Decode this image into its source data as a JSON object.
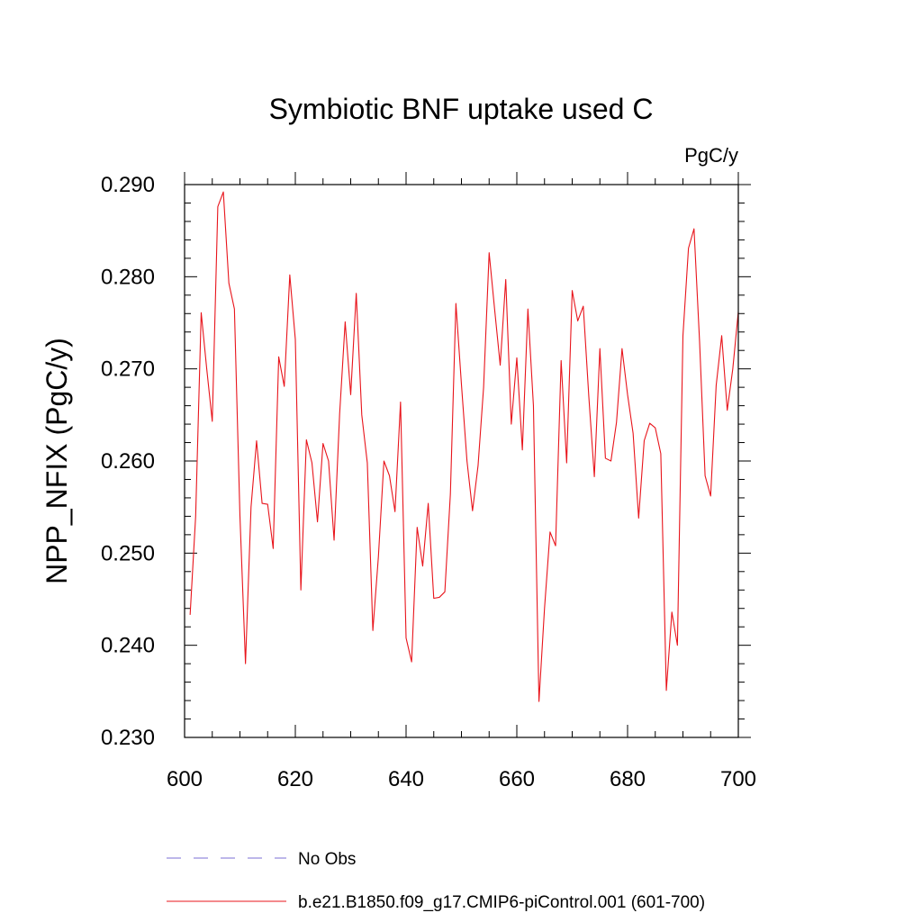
{
  "chart_data": {
    "type": "line",
    "title": "Symbiotic BNF uptake used C",
    "units_label": "PgC/y",
    "xlabel": "",
    "ylabel": "NPP_NFIX  (PgC/y)",
    "xlim": [
      600,
      700
    ],
    "ylim": [
      0.23,
      0.29
    ],
    "x_ticks": [
      600,
      620,
      640,
      660,
      680,
      700
    ],
    "x_tick_labels": [
      "600",
      "620",
      "640",
      "660",
      "680",
      "700"
    ],
    "y_ticks": [
      0.23,
      0.24,
      0.25,
      0.26,
      0.27,
      0.28,
      0.29
    ],
    "y_tick_labels": [
      "0.230",
      "0.240",
      "0.250",
      "0.260",
      "0.270",
      "0.280",
      "0.290"
    ],
    "grid": false,
    "legend": [
      {
        "label": "No Obs",
        "style": "dashed",
        "color": "#7b6fd6"
      },
      {
        "label": "b.e21.B1850.f09_g17.CMIP6-piControl.001 (601-700)",
        "style": "solid",
        "color": "#e8141b"
      }
    ],
    "series": [
      {
        "name": "b.e21.B1850.f09_g17.CMIP6-piControl.001 (601-700)",
        "color": "#e8141b",
        "x": [
          601,
          602,
          603,
          604,
          605,
          606,
          607,
          608,
          609,
          610,
          611,
          612,
          613,
          614,
          615,
          616,
          617,
          618,
          619,
          620,
          621,
          622,
          623,
          624,
          625,
          626,
          627,
          628,
          629,
          630,
          631,
          632,
          633,
          634,
          635,
          636,
          637,
          638,
          639,
          640,
          641,
          642,
          643,
          644,
          645,
          646,
          647,
          648,
          649,
          650,
          651,
          652,
          653,
          654,
          655,
          656,
          657,
          658,
          659,
          660,
          661,
          662,
          663,
          664,
          665,
          666,
          667,
          668,
          669,
          670,
          671,
          672,
          673,
          674,
          675,
          676,
          677,
          678,
          679,
          680,
          681,
          682,
          683,
          684,
          685,
          686,
          687,
          688,
          689,
          690,
          691,
          692,
          693,
          694,
          695,
          696,
          697,
          698,
          699,
          700
        ],
        "values": [
          0.2433,
          0.254,
          0.2761,
          0.27,
          0.2643,
          0.2876,
          0.2892,
          0.2793,
          0.2765,
          0.254,
          0.238,
          0.255,
          0.2622,
          0.2554,
          0.2553,
          0.2505,
          0.2713,
          0.2681,
          0.2802,
          0.2732,
          0.246,
          0.2623,
          0.2598,
          0.2534,
          0.2619,
          0.26,
          0.2514,
          0.2651,
          0.2751,
          0.2672,
          0.2782,
          0.265,
          0.2598,
          0.2416,
          0.2496,
          0.26,
          0.2584,
          0.2545,
          0.2664,
          0.2408,
          0.2382,
          0.2528,
          0.2486,
          0.2554,
          0.2451,
          0.2452,
          0.2458,
          0.2564,
          0.2771,
          0.2683,
          0.26,
          0.2546,
          0.2595,
          0.268,
          0.2826,
          0.2764,
          0.2704,
          0.2797,
          0.264,
          0.2712,
          0.2612,
          0.2765,
          0.266,
          0.2339,
          0.244,
          0.2523,
          0.2508,
          0.2709,
          0.2598,
          0.2785,
          0.2752,
          0.2768,
          0.267,
          0.2583,
          0.2722,
          0.2603,
          0.26,
          0.2642,
          0.2722,
          0.2672,
          0.263,
          0.2538,
          0.2622,
          0.2641,
          0.2636,
          0.2608,
          0.2351,
          0.2436,
          0.24,
          0.2736,
          0.2831,
          0.2852,
          0.273,
          0.2584,
          0.2562,
          0.2682,
          0.2736,
          0.2655,
          0.27,
          0.2762
        ]
      }
    ]
  }
}
